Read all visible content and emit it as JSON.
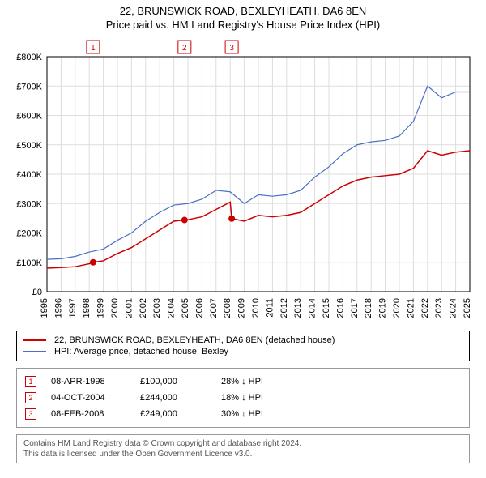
{
  "header": {
    "title": "22, BRUNSWICK ROAD, BEXLEYHEATH, DA6 8EN",
    "subtitle": "Price paid vs. HM Land Registry's House Price Index (HPI)"
  },
  "chart": {
    "type": "line",
    "background_color": "#ffffff",
    "plot_border_color": "#000000",
    "grid_color": "#dddddd",
    "title_fontsize": 13,
    "axis_fontsize": 11,
    "ylim": [
      0,
      800000
    ],
    "ytick_step": 100000,
    "ytick_labels": [
      "£0",
      "£100K",
      "£200K",
      "£300K",
      "£400K",
      "£500K",
      "£600K",
      "£700K",
      "£800K"
    ],
    "xlim": [
      1995,
      2025
    ],
    "xticks": [
      1995,
      1996,
      1997,
      1998,
      1999,
      2000,
      2001,
      2002,
      2003,
      2004,
      2005,
      2006,
      2007,
      2008,
      2009,
      2010,
      2011,
      2012,
      2013,
      2014,
      2015,
      2016,
      2017,
      2018,
      2019,
      2020,
      2021,
      2022,
      2023,
      2024,
      2025
    ],
    "series": [
      {
        "name": "22, BRUNSWICK ROAD, BEXLEYHEATH, DA6 8EN (detached house)",
        "color": "#cc0000",
        "line_width": 1.5,
        "marker_color": "#cc0000",
        "marker_size": 4,
        "x": [
          1995,
          1996,
          1997,
          1998,
          1998.27,
          1999,
          2000,
          2001,
          2002,
          2003,
          2004,
          2004.76,
          2005,
          2006,
          2007,
          2008,
          2008.11,
          2009,
          2010,
          2011,
          2012,
          2013,
          2014,
          2015,
          2016,
          2017,
          2018,
          2019,
          2020,
          2021,
          2022,
          2023,
          2024,
          2025
        ],
        "y": [
          80000,
          82000,
          85000,
          95000,
          100000,
          105000,
          130000,
          150000,
          180000,
          210000,
          240000,
          244000,
          245000,
          255000,
          280000,
          305000,
          249000,
          240000,
          260000,
          255000,
          260000,
          270000,
          300000,
          330000,
          360000,
          380000,
          390000,
          395000,
          400000,
          420000,
          480000,
          465000,
          475000,
          480000
        ],
        "markers_at": [
          1998.27,
          2004.76,
          2008.11
        ]
      },
      {
        "name": "HPI: Average price, detached house, Bexley",
        "color": "#4a6fc4",
        "line_width": 1.2,
        "x": [
          1995,
          1996,
          1997,
          1998,
          1999,
          2000,
          2001,
          2002,
          2003,
          2004,
          2005,
          2006,
          2007,
          2008,
          2009,
          2010,
          2011,
          2012,
          2013,
          2014,
          2015,
          2016,
          2017,
          2018,
          2019,
          2020,
          2021,
          2022,
          2023,
          2024,
          2025
        ],
        "y": [
          110000,
          112000,
          120000,
          135000,
          145000,
          175000,
          200000,
          240000,
          270000,
          295000,
          300000,
          315000,
          345000,
          340000,
          300000,
          330000,
          325000,
          330000,
          345000,
          390000,
          425000,
          470000,
          500000,
          510000,
          515000,
          530000,
          580000,
          700000,
          660000,
          680000,
          680000
        ]
      }
    ],
    "event_markers": [
      {
        "label": "1",
        "x": 1998.27
      },
      {
        "label": "2",
        "x": 2004.76
      },
      {
        "label": "3",
        "x": 2008.11
      }
    ]
  },
  "legend": {
    "items": [
      {
        "color": "#cc0000",
        "label": "22, BRUNSWICK ROAD, BEXLEYHEATH, DA6 8EN (detached house)"
      },
      {
        "color": "#4a6fc4",
        "label": "HPI: Average price, detached house, Bexley"
      }
    ]
  },
  "events": [
    {
      "num": "1",
      "date": "08-APR-1998",
      "price": "£100,000",
      "delta": "28% ↓ HPI"
    },
    {
      "num": "2",
      "date": "04-OCT-2004",
      "price": "£244,000",
      "delta": "18% ↓ HPI"
    },
    {
      "num": "3",
      "date": "08-FEB-2008",
      "price": "£249,000",
      "delta": "30% ↓ HPI"
    }
  ],
  "footer": {
    "line1": "Contains HM Land Registry data © Crown copyright and database right 2024.",
    "line2": "This data is licensed under the Open Government Licence v3.0."
  }
}
